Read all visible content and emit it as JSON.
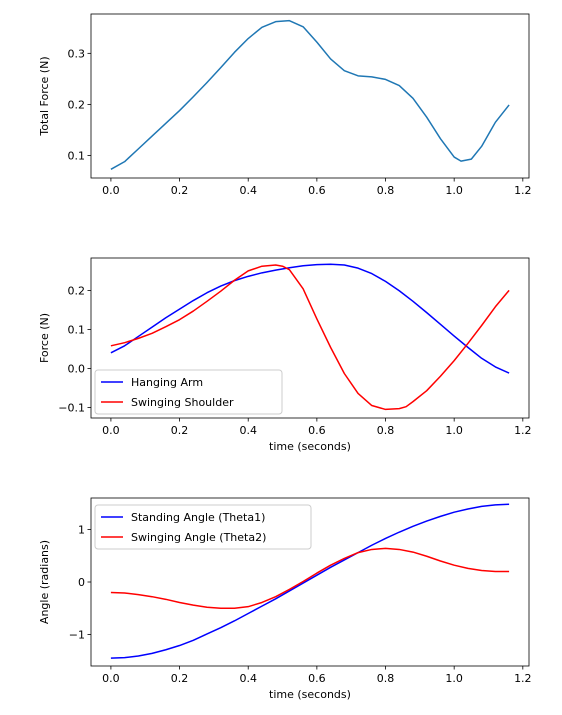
{
  "chart_data": [
    {
      "type": "line",
      "xlabel": "",
      "ylabel": "Total Force (N)",
      "xlim": [
        -0.058,
        1.218
      ],
      "ylim": [
        0.056,
        0.377
      ],
      "xticks": [
        0.0,
        0.2,
        0.4,
        0.6,
        0.8,
        1.0,
        1.2
      ],
      "xtick_labels": [
        "0.0",
        "0.2",
        "0.4",
        "0.6",
        "0.8",
        "1.0",
        "1.2"
      ],
      "yticks": [
        0.1,
        0.2,
        0.3
      ],
      "ytick_labels": [
        "0.1",
        "0.2",
        "0.3"
      ],
      "legend": "none",
      "series": [
        {
          "color": "#1f77b4",
          "x": [
            0.0,
            0.04,
            0.08,
            0.12,
            0.16,
            0.2,
            0.24,
            0.28,
            0.32,
            0.36,
            0.4,
            0.44,
            0.48,
            0.52,
            0.56,
            0.6,
            0.64,
            0.68,
            0.72,
            0.76,
            0.8,
            0.84,
            0.88,
            0.92,
            0.96,
            1.0,
            1.02,
            1.05,
            1.08,
            1.12,
            1.16
          ],
          "y": [
            0.073,
            0.088,
            0.113,
            0.138,
            0.163,
            0.188,
            0.215,
            0.243,
            0.272,
            0.302,
            0.329,
            0.351,
            0.362,
            0.364,
            0.352,
            0.322,
            0.289,
            0.266,
            0.256,
            0.254,
            0.249,
            0.237,
            0.212,
            0.175,
            0.133,
            0.097,
            0.089,
            0.093,
            0.118,
            0.165,
            0.199
          ]
        }
      ]
    },
    {
      "type": "line",
      "xlabel": "time (seconds)",
      "ylabel": "Force (N)",
      "xlim": [
        -0.058,
        1.218
      ],
      "ylim": [
        -0.127,
        0.283
      ],
      "xticks": [
        0.0,
        0.2,
        0.4,
        0.6,
        0.8,
        1.0,
        1.2
      ],
      "xtick_labels": [
        "0.0",
        "0.2",
        "0.4",
        "0.6",
        "0.8",
        "1.0",
        "1.2"
      ],
      "yticks": [
        -0.1,
        0.0,
        0.1,
        0.2
      ],
      "ytick_labels": [
        "−0.1",
        "0.0",
        "0.1",
        "0.2"
      ],
      "legend": "lower left",
      "series": [
        {
          "name": "Hanging Arm",
          "color": "#0000ff",
          "x": [
            0.0,
            0.04,
            0.08,
            0.12,
            0.16,
            0.2,
            0.24,
            0.28,
            0.32,
            0.36,
            0.4,
            0.44,
            0.48,
            0.52,
            0.56,
            0.6,
            0.64,
            0.68,
            0.72,
            0.76,
            0.8,
            0.84,
            0.88,
            0.92,
            0.96,
            1.0,
            1.04,
            1.08,
            1.12,
            1.16
          ],
          "y": [
            0.04,
            0.058,
            0.082,
            0.106,
            0.13,
            0.152,
            0.174,
            0.194,
            0.211,
            0.225,
            0.236,
            0.245,
            0.252,
            0.258,
            0.263,
            0.266,
            0.267,
            0.265,
            0.257,
            0.243,
            0.223,
            0.199,
            0.172,
            0.143,
            0.113,
            0.083,
            0.054,
            0.026,
            0.004,
            -0.012
          ]
        },
        {
          "name": "Swinging Shoulder",
          "color": "#ff0000",
          "x": [
            0.0,
            0.04,
            0.08,
            0.12,
            0.16,
            0.2,
            0.24,
            0.28,
            0.32,
            0.36,
            0.4,
            0.44,
            0.48,
            0.5,
            0.52,
            0.56,
            0.6,
            0.64,
            0.68,
            0.72,
            0.76,
            0.8,
            0.84,
            0.86,
            0.88,
            0.92,
            0.96,
            1.0,
            1.04,
            1.08,
            1.12,
            1.16
          ],
          "y": [
            0.058,
            0.066,
            0.077,
            0.09,
            0.107,
            0.125,
            0.147,
            0.172,
            0.198,
            0.226,
            0.25,
            0.262,
            0.265,
            0.262,
            0.253,
            0.204,
            0.127,
            0.054,
            -0.013,
            -0.064,
            -0.095,
            -0.105,
            -0.103,
            -0.098,
            -0.085,
            -0.057,
            -0.02,
            0.02,
            0.064,
            0.11,
            0.158,
            0.2
          ]
        }
      ]
    },
    {
      "type": "line",
      "xlabel": "time (seconds)",
      "ylabel": "Angle (radians)",
      "xlim": [
        -0.058,
        1.218
      ],
      "ylim": [
        -1.6,
        1.6
      ],
      "xticks": [
        0.0,
        0.2,
        0.4,
        0.6,
        0.8,
        1.0,
        1.2
      ],
      "xtick_labels": [
        "0.0",
        "0.2",
        "0.4",
        "0.6",
        "0.8",
        "1.0",
        "1.2"
      ],
      "yticks": [
        -1,
        0,
        1
      ],
      "ytick_labels": [
        "−1",
        "0",
        "1"
      ],
      "legend": "upper left",
      "series": [
        {
          "name": "Standing Angle (Theta1)",
          "color": "#0000ff",
          "x": [
            0.0,
            0.04,
            0.08,
            0.12,
            0.16,
            0.2,
            0.24,
            0.28,
            0.32,
            0.36,
            0.4,
            0.44,
            0.48,
            0.52,
            0.56,
            0.6,
            0.64,
            0.68,
            0.72,
            0.76,
            0.8,
            0.84,
            0.88,
            0.92,
            0.96,
            1.0,
            1.04,
            1.08,
            1.12,
            1.16
          ],
          "y": [
            -1.45,
            -1.44,
            -1.41,
            -1.36,
            -1.29,
            -1.21,
            -1.11,
            -0.99,
            -0.87,
            -0.74,
            -0.6,
            -0.46,
            -0.32,
            -0.17,
            -0.02,
            0.13,
            0.28,
            0.42,
            0.56,
            0.7,
            0.83,
            0.95,
            1.06,
            1.16,
            1.25,
            1.33,
            1.39,
            1.44,
            1.47,
            1.48
          ]
        },
        {
          "name": "Swinging Angle (Theta2)",
          "color": "#ff0000",
          "x": [
            0.0,
            0.04,
            0.08,
            0.12,
            0.16,
            0.2,
            0.24,
            0.28,
            0.32,
            0.36,
            0.4,
            0.44,
            0.48,
            0.52,
            0.56,
            0.6,
            0.64,
            0.68,
            0.72,
            0.76,
            0.8,
            0.84,
            0.88,
            0.92,
            0.96,
            1.0,
            1.04,
            1.08,
            1.12,
            1.16
          ],
          "y": [
            -0.2,
            -0.21,
            -0.24,
            -0.28,
            -0.33,
            -0.39,
            -0.44,
            -0.48,
            -0.5,
            -0.5,
            -0.47,
            -0.39,
            -0.28,
            -0.14,
            0.01,
            0.17,
            0.32,
            0.45,
            0.56,
            0.62,
            0.64,
            0.62,
            0.57,
            0.49,
            0.4,
            0.32,
            0.26,
            0.22,
            0.2,
            0.2
          ]
        }
      ]
    }
  ]
}
